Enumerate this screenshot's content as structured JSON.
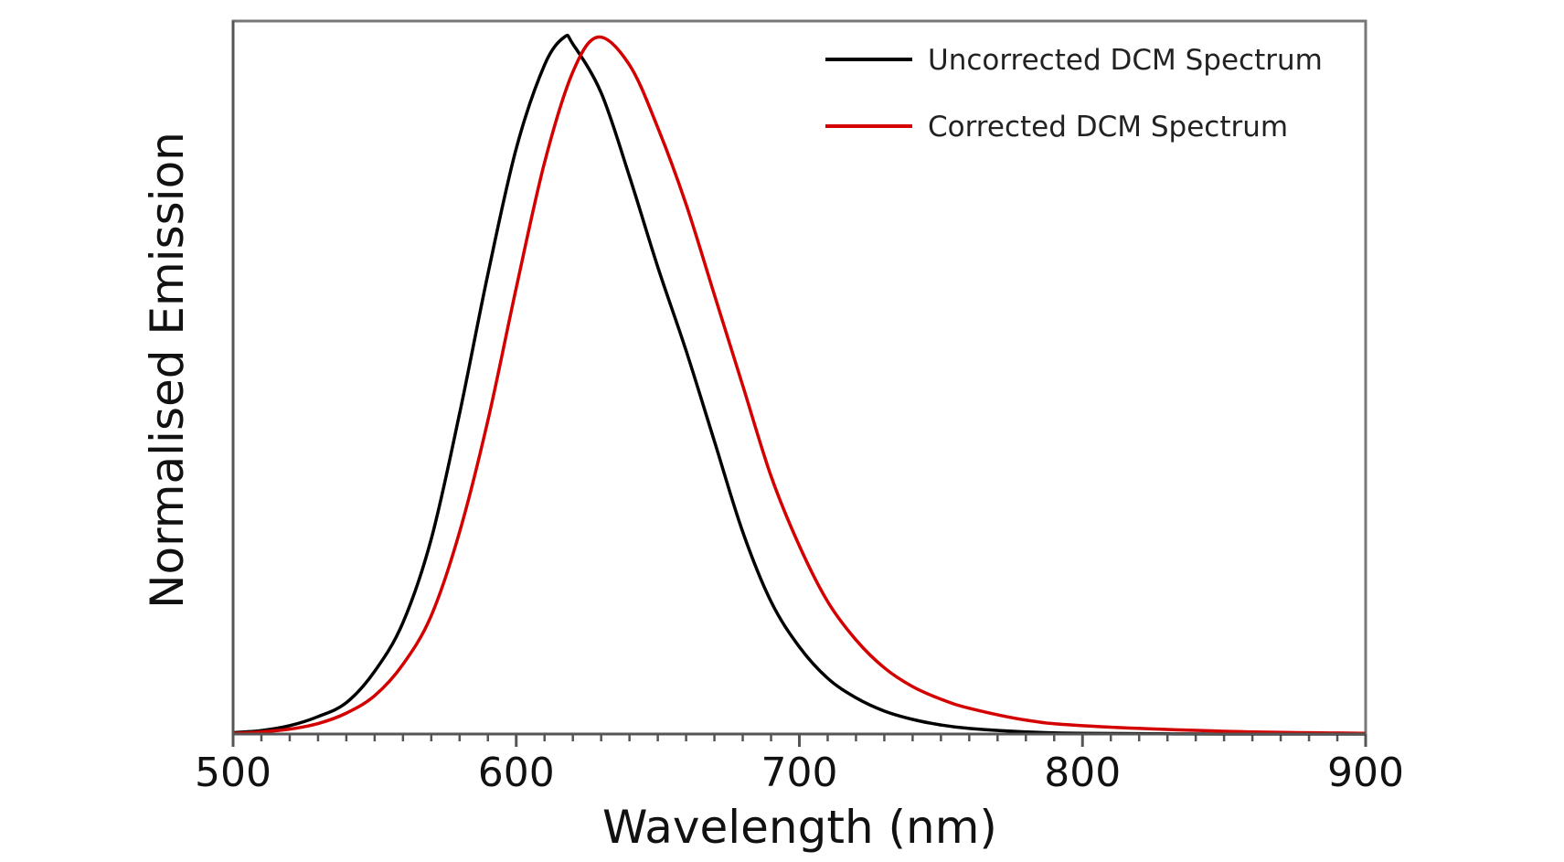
{
  "chart_data": {
    "type": "line",
    "title": "",
    "xlabel": "Wavelength (nm)",
    "ylabel": "Normalised Emission",
    "xlim": [
      500,
      900
    ],
    "ylim": [
      0,
      1.023
    ],
    "x_ticks": [
      "500",
      "600",
      "700",
      "800",
      "900"
    ],
    "x_minor_tick_step": 10,
    "y_ticks_shown": false,
    "grid": false,
    "legend_position": "top-right",
    "series": [
      {
        "name": "Uncorrected DCM Spectrum",
        "color": "#000000",
        "x": [
          500,
          510,
          520,
          530,
          540,
          550,
          560,
          570,
          580,
          590,
          600,
          610,
          617,
          620,
          630,
          640,
          650,
          660,
          670,
          680,
          690,
          700,
          710,
          720,
          730,
          740,
          750,
          760,
          780,
          800,
          850,
          900
        ],
        "y": [
          0.002,
          0.005,
          0.012,
          0.025,
          0.045,
          0.09,
          0.16,
          0.28,
          0.46,
          0.66,
          0.84,
          0.96,
          1.0,
          0.99,
          0.92,
          0.8,
          0.67,
          0.55,
          0.42,
          0.29,
          0.19,
          0.125,
          0.08,
          0.052,
          0.033,
          0.021,
          0.013,
          0.008,
          0.003,
          0.001,
          0.0,
          0.0
        ]
      },
      {
        "name": "Corrected DCM Spectrum",
        "color": "#d40000",
        "x": [
          500,
          510,
          520,
          530,
          540,
          550,
          560,
          570,
          580,
          590,
          600,
          610,
          620,
          629,
          640,
          650,
          660,
          670,
          680,
          690,
          700,
          710,
          720,
          730,
          740,
          750,
          760,
          780,
          800,
          850,
          900
        ],
        "y": [
          0.001,
          0.003,
          0.007,
          0.015,
          0.03,
          0.055,
          0.1,
          0.17,
          0.29,
          0.45,
          0.64,
          0.82,
          0.95,
          1.0,
          0.96,
          0.87,
          0.76,
          0.63,
          0.5,
          0.37,
          0.27,
          0.19,
          0.135,
          0.095,
          0.068,
          0.05,
          0.037,
          0.02,
          0.012,
          0.004,
          0.001
        ]
      }
    ]
  }
}
